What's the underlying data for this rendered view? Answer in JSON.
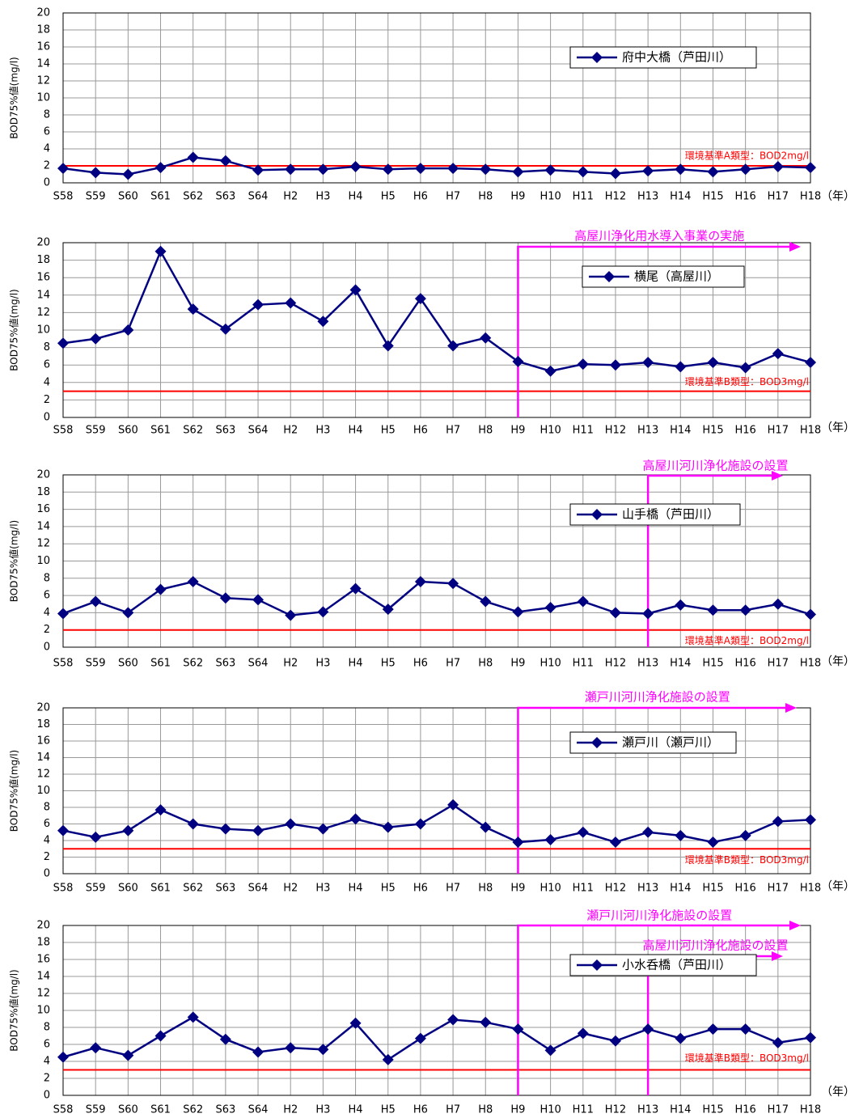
{
  "chart_data": [
    {
      "type": "line",
      "y_label": "BOD75%値(mg/l)",
      "x_label": "（年）",
      "categories": [
        "S58",
        "S59",
        "S60",
        "S61",
        "S62",
        "S63",
        "S64",
        "H2",
        "H3",
        "H4",
        "H5",
        "H6",
        "H7",
        "H8",
        "H9",
        "H10",
        "H11",
        "H12",
        "H13",
        "H14",
        "H15",
        "H16",
        "H17",
        "H18"
      ],
      "series": [
        {
          "name": "府中大橋（芦田川）",
          "color": "#000080",
          "values": [
            1.7,
            1.2,
            1.0,
            1.8,
            3.0,
            2.6,
            1.5,
            1.6,
            1.6,
            1.9,
            1.6,
            1.7,
            1.7,
            1.6,
            1.3,
            1.5,
            1.3,
            1.1,
            1.4,
            1.6,
            1.3,
            1.6,
            1.9,
            1.8
          ]
        }
      ],
      "ylim": [
        0,
        20
      ],
      "yticks": [
        0,
        2,
        4,
        6,
        8,
        10,
        12,
        14,
        16,
        18,
        20
      ],
      "grid": true,
      "reference_line": {
        "value": 2,
        "label": "環境基準A類型：BOD2mg/l",
        "color": "#ff0000"
      },
      "arrows": []
    },
    {
      "type": "line",
      "y_label": "BOD75%値(mg/l)",
      "x_label": "（年）",
      "categories": [
        "S58",
        "S59",
        "S60",
        "S61",
        "S62",
        "S63",
        "S64",
        "H2",
        "H3",
        "H4",
        "H5",
        "H6",
        "H7",
        "H8",
        "H9",
        "H10",
        "H11",
        "H12",
        "H13",
        "H14",
        "H15",
        "H16",
        "H17",
        "H18"
      ],
      "series": [
        {
          "name": "横尾（高屋川）",
          "color": "#000080",
          "values": [
            8.5,
            9.0,
            10.0,
            19.0,
            12.4,
            10.1,
            12.9,
            13.1,
            11.0,
            14.6,
            8.2,
            13.6,
            8.2,
            9.1,
            6.4,
            5.3,
            6.1,
            6.0,
            6.3,
            5.8,
            6.3,
            5.7,
            7.3,
            6.3
          ]
        }
      ],
      "ylim": [
        0,
        20
      ],
      "yticks": [
        0,
        2,
        4,
        6,
        8,
        10,
        12,
        14,
        16,
        18,
        20
      ],
      "grid": true,
      "reference_line": {
        "value": 3,
        "label": "環境基準B類型：BOD3mg/l",
        "color": "#ff0000"
      },
      "arrows": [
        {
          "text": "高屋川浄化用水導入事業の実施",
          "start_category": "H9",
          "color": "#ff00ff"
        }
      ]
    },
    {
      "type": "line",
      "y_label": "BOD75%値(mg/l)",
      "x_label": "（年）",
      "categories": [
        "S58",
        "S59",
        "S60",
        "S61",
        "S62",
        "S63",
        "S64",
        "H2",
        "H3",
        "H4",
        "H5",
        "H6",
        "H7",
        "H8",
        "H9",
        "H10",
        "H11",
        "H12",
        "H13",
        "H14",
        "H15",
        "H16",
        "H17",
        "H18"
      ],
      "series": [
        {
          "name": "山手橋（芦田川）",
          "color": "#000080",
          "values": [
            3.9,
            5.3,
            4.0,
            6.7,
            7.6,
            5.7,
            5.5,
            3.7,
            4.1,
            6.8,
            4.4,
            7.6,
            7.4,
            5.3,
            4.1,
            4.6,
            5.3,
            4.0,
            3.9,
            4.9,
            4.3,
            4.3,
            5.0,
            3.8
          ]
        }
      ],
      "ylim": [
        0,
        20
      ],
      "yticks": [
        0,
        2,
        4,
        6,
        8,
        10,
        12,
        14,
        16,
        18,
        20
      ],
      "grid": true,
      "reference_line": {
        "value": 2,
        "label": "環境基準A類型：BOD2mg/l",
        "color": "#ff0000"
      },
      "arrows": [
        {
          "text": "高屋川河川浄化施設の設置",
          "start_category": "H13",
          "color": "#ff00ff"
        }
      ]
    },
    {
      "type": "line",
      "y_label": "BOD75%値(mg/l)",
      "x_label": "（年）",
      "categories": [
        "S58",
        "S59",
        "S60",
        "S61",
        "S62",
        "S63",
        "S64",
        "H2",
        "H3",
        "H4",
        "H5",
        "H6",
        "H7",
        "H8",
        "H9",
        "H10",
        "H11",
        "H12",
        "H13",
        "H14",
        "H15",
        "H16",
        "H17",
        "H18"
      ],
      "series": [
        {
          "name": "瀬戸川（瀬戸川）",
          "color": "#000080",
          "values": [
            5.2,
            4.4,
            5.2,
            7.7,
            6.0,
            5.4,
            5.2,
            6.0,
            5.4,
            6.6,
            5.6,
            6.0,
            8.3,
            5.6,
            3.8,
            4.1,
            5.0,
            3.8,
            5.0,
            4.6,
            3.8,
            4.6,
            6.3,
            6.5
          ]
        }
      ],
      "ylim": [
        0,
        20
      ],
      "yticks": [
        0,
        2,
        4,
        6,
        8,
        10,
        12,
        14,
        16,
        18,
        20
      ],
      "grid": true,
      "reference_line": {
        "value": 3,
        "label": "環境基準B類型：BOD3mg/l",
        "color": "#ff0000"
      },
      "arrows": [
        {
          "text": "瀬戸川河川浄化施設の設置",
          "start_category": "H9",
          "color": "#ff00ff"
        }
      ]
    },
    {
      "type": "line",
      "y_label": "BOD75%値(mg/l)",
      "x_label": "（年）",
      "categories": [
        "S58",
        "S59",
        "S60",
        "S61",
        "S62",
        "S63",
        "S64",
        "H2",
        "H3",
        "H4",
        "H5",
        "H6",
        "H7",
        "H8",
        "H9",
        "H10",
        "H11",
        "H12",
        "H13",
        "H14",
        "H15",
        "H16",
        "H17",
        "H18"
      ],
      "series": [
        {
          "name": "小水呑橋（芦田川）",
          "color": "#000080",
          "values": [
            4.5,
            5.6,
            4.7,
            7.0,
            9.2,
            6.6,
            5.1,
            5.6,
            5.4,
            8.5,
            4.2,
            6.7,
            8.9,
            8.6,
            7.8,
            5.3,
            7.3,
            6.4,
            7.8,
            6.7,
            7.8,
            7.8,
            6.2,
            6.8
          ]
        }
      ],
      "ylim": [
        0,
        20
      ],
      "yticks": [
        0,
        2,
        4,
        6,
        8,
        10,
        12,
        14,
        16,
        18,
        20
      ],
      "grid": true,
      "reference_line": {
        "value": 3,
        "label": "環境基準B類型：BOD3mg/l",
        "color": "#ff0000"
      },
      "arrows": [
        {
          "text": "瀬戸川河川浄化施設の設置",
          "start_category": "H9",
          "color": "#ff00ff"
        },
        {
          "text": "高屋川河川浄化施設の設置",
          "start_category": "H13",
          "color": "#ff00ff"
        }
      ]
    }
  ]
}
